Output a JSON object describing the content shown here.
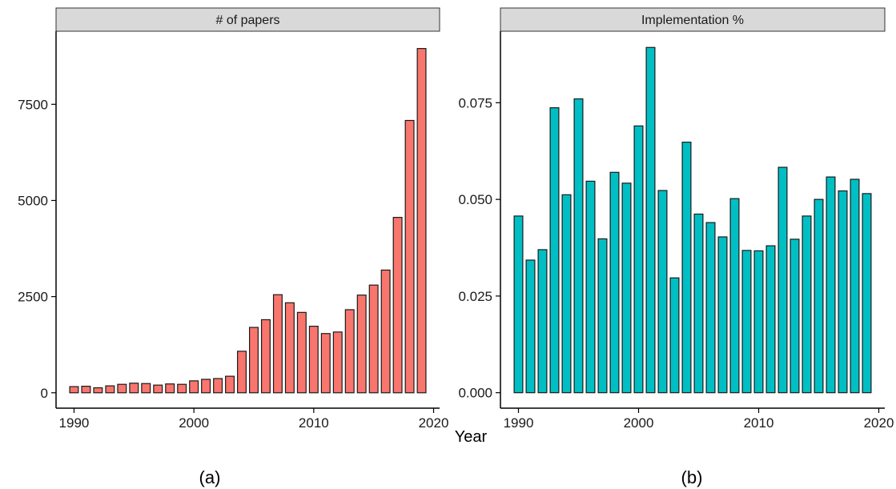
{
  "xlabel": "Year",
  "captions": [
    "(a)",
    "(b)"
  ],
  "chart_data": [
    {
      "type": "bar",
      "title": "# of papers",
      "xlabel": "Year",
      "ylabel": "",
      "x": [
        1990,
        1991,
        1992,
        1993,
        1994,
        1995,
        1996,
        1997,
        1998,
        1999,
        2000,
        2001,
        2002,
        2003,
        2004,
        2005,
        2006,
        2007,
        2008,
        2009,
        2010,
        2011,
        2012,
        2013,
        2014,
        2015,
        2016,
        2017,
        2018,
        2019
      ],
      "values": [
        160,
        170,
        130,
        180,
        220,
        250,
        240,
        200,
        230,
        220,
        310,
        350,
        370,
        430,
        1080,
        1700,
        1900,
        2550,
        2340,
        2090,
        1730,
        1540,
        1580,
        2160,
        2540,
        2800,
        3190,
        4560,
        7080,
        8950
      ],
      "xlim": [
        1988.5,
        2020.5
      ],
      "ylim": [
        -400,
        9400
      ],
      "xticks": [
        1990,
        2000,
        2010,
        2020
      ],
      "xtick_labels": [
        "1990",
        "2000",
        "2010",
        "2020"
      ],
      "yticks": [
        0,
        2500,
        5000,
        7500
      ],
      "ytick_labels": [
        "0",
        "2500",
        "5000",
        "7500"
      ],
      "bar_color": "#F8766D",
      "grid": false,
      "legend": "none"
    },
    {
      "type": "bar",
      "title": "Implementation %",
      "xlabel": "Year",
      "ylabel": "",
      "x": [
        1990,
        1991,
        1992,
        1993,
        1994,
        1995,
        1996,
        1997,
        1998,
        1999,
        2000,
        2001,
        2002,
        2003,
        2004,
        2005,
        2006,
        2007,
        2008,
        2009,
        2010,
        2011,
        2012,
        2013,
        2014,
        2015,
        2016,
        2017,
        2018,
        2019
      ],
      "values": [
        0.0457,
        0.0343,
        0.037,
        0.0737,
        0.0512,
        0.076,
        0.0547,
        0.0398,
        0.057,
        0.0542,
        0.069,
        0.0893,
        0.0523,
        0.0297,
        0.0648,
        0.0462,
        0.044,
        0.0403,
        0.0502,
        0.0368,
        0.0367,
        0.038,
        0.0583,
        0.0397,
        0.0457,
        0.05,
        0.0558,
        0.0522,
        0.0552,
        0.0515
      ],
      "xlim": [
        1988.5,
        2020.5
      ],
      "ylim": [
        -0.004,
        0.0935
      ],
      "xticks": [
        1990,
        2000,
        2010,
        2020
      ],
      "xtick_labels": [
        "1990",
        "2000",
        "2010",
        "2020"
      ],
      "yticks": [
        0,
        0.025,
        0.05,
        0.075
      ],
      "ytick_labels": [
        "0.000",
        "0.025",
        "0.050",
        "0.075"
      ],
      "bar_color": "#00BFC4",
      "grid": false,
      "legend": "none"
    }
  ]
}
